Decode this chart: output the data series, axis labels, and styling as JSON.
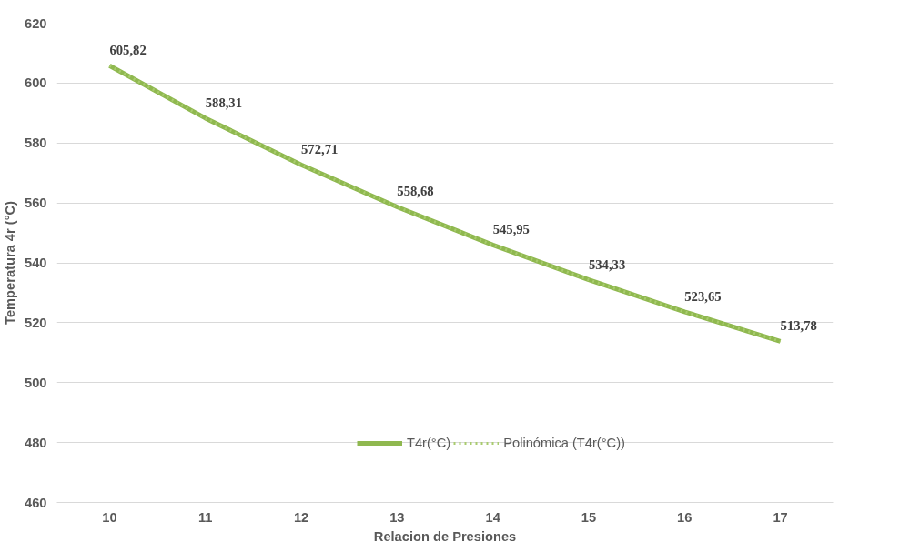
{
  "chart_data": {
    "type": "line",
    "xlabel": "Relacion de Presiones",
    "ylabel": "Temperatura 4r (°C)",
    "categories": [
      "10",
      "11",
      "12",
      "13",
      "14",
      "15",
      "16",
      "17"
    ],
    "ylim": [
      460,
      620
    ],
    "yticks": [
      460,
      480,
      500,
      520,
      540,
      560,
      580,
      600,
      620
    ],
    "grid": "y",
    "legend": "bottom",
    "series": [
      {
        "name": "T4r(°C)",
        "color": "#8fb84f",
        "line_style": "solid",
        "values": [
          605.82,
          588.31,
          572.71,
          558.68,
          545.95,
          534.33,
          523.65,
          513.78
        ],
        "value_labels": [
          "605,82",
          "588,31",
          "572,71",
          "558,68",
          "545,95",
          "534,33",
          "523,65",
          "513,78"
        ]
      },
      {
        "name": "Polinómica (T4r(°C))",
        "color": "#a9cc6e",
        "line_style": "dotted",
        "values": [
          605.82,
          588.31,
          572.71,
          558.68,
          545.95,
          534.33,
          523.65,
          513.78
        ]
      }
    ]
  }
}
